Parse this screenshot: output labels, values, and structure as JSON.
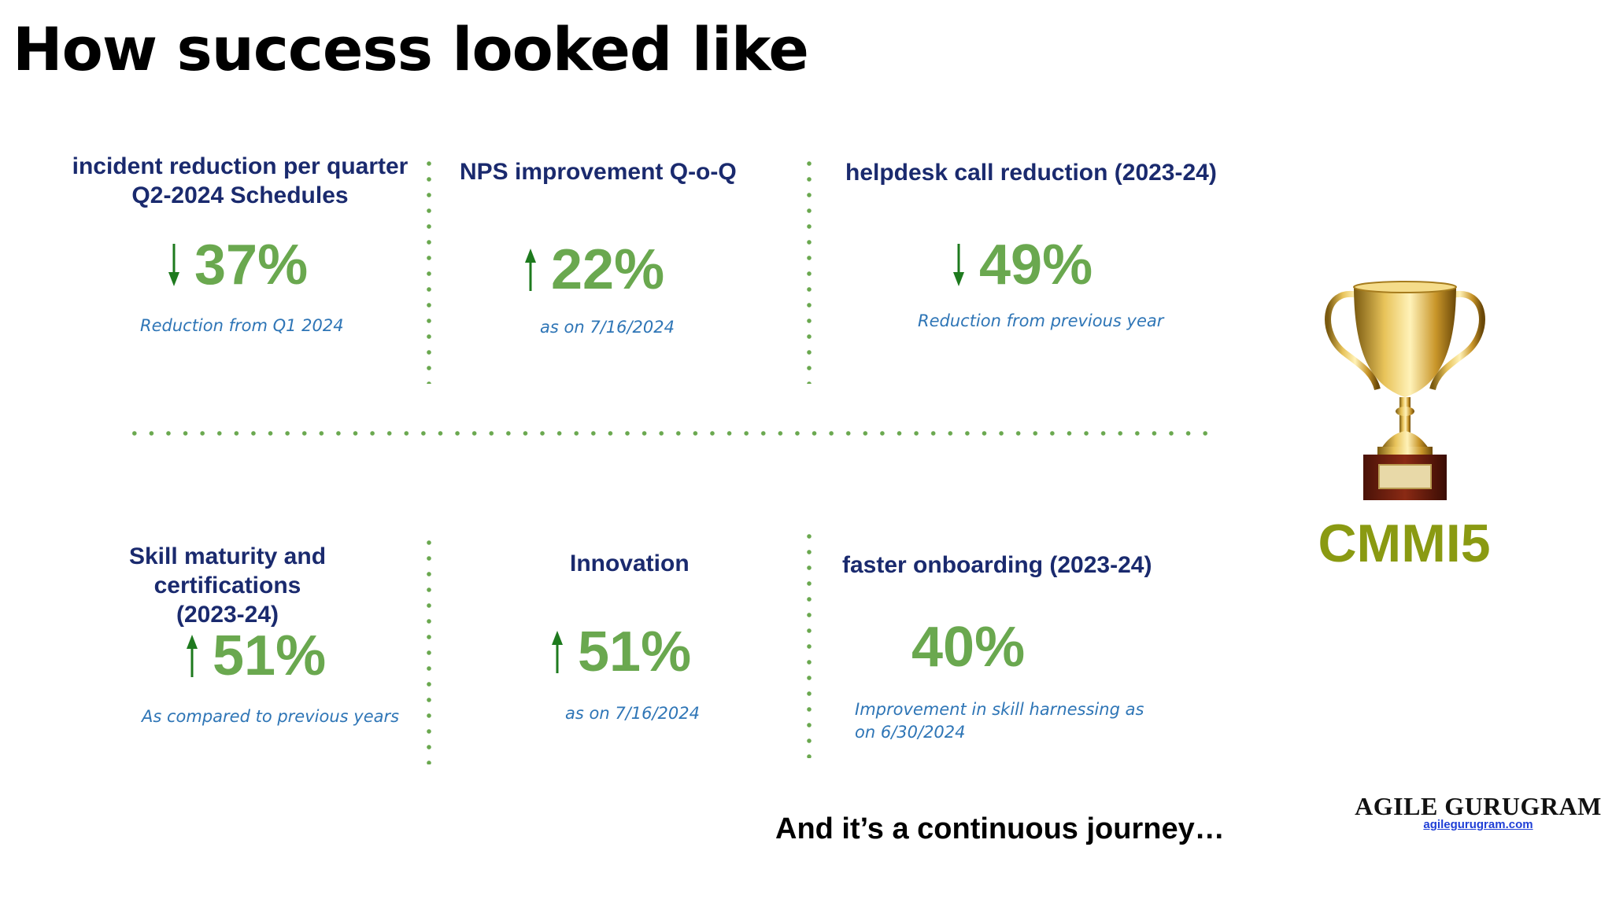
{
  "title": "How success looked like",
  "metrics": [
    {
      "heading": "incident reduction per quarter\nQ2-2024 Schedules",
      "direction": "down",
      "value": "37%",
      "note": "Reduction from Q1 2024"
    },
    {
      "heading": "NPS improvement Q-o-Q",
      "direction": "up",
      "value": "22%",
      "note": "as on 7/16/2024"
    },
    {
      "heading": "helpdesk call reduction (2023-24)",
      "direction": "down",
      "value": "49%",
      "note": "Reduction from previous year"
    },
    {
      "heading": "Skill maturity and certifications\n(2023-24)",
      "direction": "up",
      "value": "51%",
      "note": "As compared to previous years"
    },
    {
      "heading": "Innovation",
      "direction": "up",
      "value": "51%",
      "note": "as on 7/16/2024"
    },
    {
      "heading": "faster onboarding (2023-24)",
      "direction": "none",
      "value": "40%",
      "note": "Improvement in skill harnessing as\non 6/30/2024"
    }
  ],
  "badge": "CMMI5",
  "badge_icon": "trophy-icon",
  "footer": "And it’s a continuous journey…",
  "brand": {
    "name": "AGILE GURUGRAM",
    "url": "agilegurugram.com"
  },
  "colors": {
    "heading": "#1a2a6e",
    "value": "#6aa84f",
    "note": "#2e75b6",
    "arrow": "#1e7a1e",
    "badge": "#8a9a12",
    "dots": "#6aa84f"
  }
}
